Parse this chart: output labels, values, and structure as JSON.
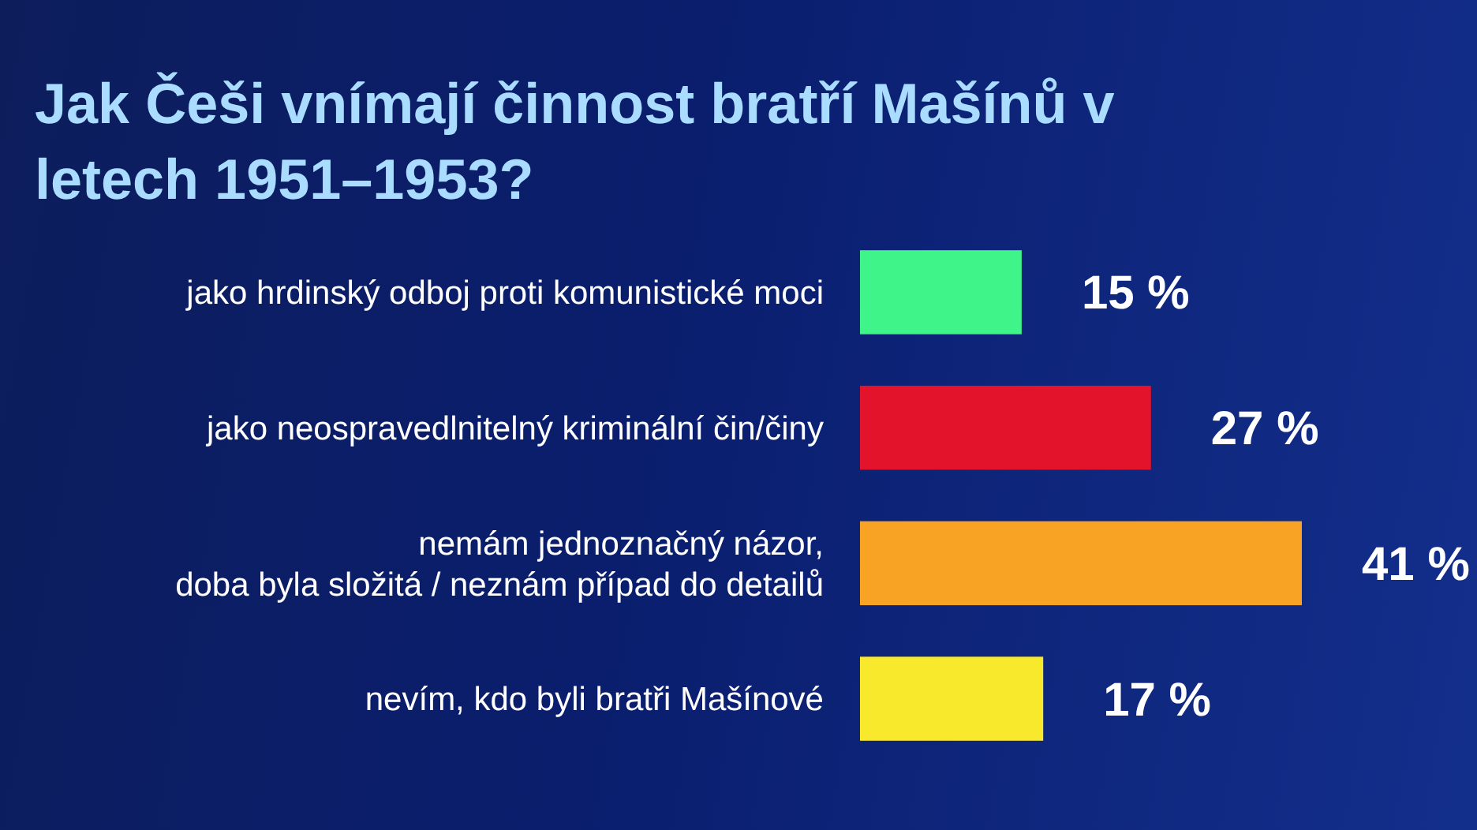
{
  "chart_data": {
    "type": "bar",
    "orientation": "horizontal",
    "title": "Jak Češi vnímají činnost bratří Mašínů v letech 1951–1953?",
    "categories": [
      "jako hrdinský odboj proti komunistické moci",
      "jako neospravedlnitelný kriminální čin/činy",
      "nemám jednoznačný názor, doba byla složitá / neznám případ do detailů",
      "nevím, kdo byli bratři Mašínové"
    ],
    "values": [
      15,
      27,
      41,
      17
    ],
    "colors": [
      "#3ff58a",
      "#e3132c",
      "#f9a324",
      "#f9e92c"
    ],
    "value_labels": [
      "15 %",
      "27 %",
      "41 %",
      "17 %"
    ]
  }
}
